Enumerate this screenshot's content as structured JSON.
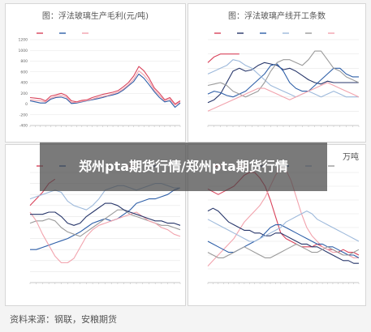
{
  "overlay_title": "郑州pta期货行情/郑州pta期货行情",
  "source": "资料来源：钢联，安粮期货",
  "colors": {
    "red": "#d9435b",
    "blue": "#2e5fa8",
    "pink": "#f2a3ad",
    "lightblue": "#9db9db",
    "gray": "#9a9a9a",
    "navy": "#27366a"
  },
  "chart_data": [
    {
      "id": "tl",
      "type": "line",
      "title": "图：浮法玻璃生产毛利(元/吨)",
      "legend": [
        "",
        "",
        ""
      ],
      "yticks": [
        "1200",
        "1000",
        "800",
        "600",
        "400",
        "200",
        "0",
        "-200",
        "-400"
      ],
      "ylim": [
        -400,
        1200
      ],
      "x": [
        0,
        1,
        2,
        3,
        4,
        5,
        6,
        7,
        8,
        9,
        10,
        11,
        12,
        13,
        14,
        15,
        16,
        17,
        18,
        19,
        20,
        21,
        22,
        23,
        24,
        25,
        26,
        27,
        28,
        29
      ],
      "series": [
        {
          "color_key": "red",
          "values": [
            120,
            110,
            100,
            60,
            150,
            170,
            200,
            160,
            60,
            40,
            70,
            80,
            120,
            150,
            180,
            200,
            220,
            250,
            320,
            400,
            520,
            700,
            620,
            480,
            300,
            200,
            80,
            120,
            0,
            60
          ]
        },
        {
          "color_key": "blue",
          "values": [
            60,
            40,
            20,
            20,
            90,
            120,
            130,
            100,
            10,
            20,
            40,
            60,
            80,
            100,
            120,
            150,
            170,
            200,
            260,
            340,
            420,
            560,
            480,
            360,
            230,
            120,
            40,
            60,
            -60,
            20
          ]
        },
        {
          "color_key": "pink",
          "values": [
            80,
            70,
            60,
            40,
            110,
            140,
            160,
            130,
            30,
            30,
            50,
            70,
            90,
            120,
            140,
            160,
            190,
            220,
            280,
            360,
            460,
            620,
            540,
            420,
            260,
            160,
            60,
            90,
            -20,
            40
          ]
        }
      ]
    },
    {
      "id": "tr",
      "type": "line",
      "title": "图：浮法玻璃产线开工条数",
      "legend": [
        "",
        "",
        "",
        "",
        "",
        ""
      ],
      "yticks": [
        "",
        "",
        "",
        "",
        "",
        "",
        ""
      ],
      "ylim": [
        0,
        6
      ],
      "x": [
        0,
        1,
        2,
        3,
        4,
        5,
        6,
        7,
        8,
        9,
        10,
        11,
        12,
        13,
        14,
        15,
        16,
        17,
        18,
        19,
        20,
        21,
        22,
        23,
        24
      ],
      "series": [
        {
          "color_key": "red",
          "values": [
            4.4,
            4.8,
            5.0,
            5.0,
            5.0,
            5.0,
            null,
            null,
            null,
            null,
            null,
            null,
            null,
            null,
            null,
            null,
            null,
            null,
            null,
            null,
            null,
            null,
            null,
            null,
            null
          ]
        },
        {
          "color_key": "navy",
          "values": [
            1.6,
            1.8,
            2.2,
            3.0,
            3.8,
            4.0,
            3.8,
            3.9,
            4.2,
            4.4,
            4.3,
            4.2,
            3.9,
            4.0,
            3.8,
            3.5,
            3.2,
            3.0,
            2.9,
            3.1,
            3.0,
            3.0,
            3.0,
            3.0,
            3.0
          ]
        },
        {
          "color_key": "blue",
          "values": [
            2.2,
            2.4,
            2.3,
            2.1,
            2.0,
            2.2,
            2.4,
            2.8,
            3.2,
            3.6,
            4.2,
            4.3,
            3.8,
            3.0,
            2.6,
            2.4,
            2.4,
            2.8,
            3.2,
            3.6,
            4.0,
            4.0,
            3.6,
            3.4,
            3.4
          ]
        },
        {
          "color_key": "lightblue",
          "values": [
            3.6,
            3.8,
            4.0,
            4.2,
            4.6,
            4.5,
            4.2,
            4.0,
            3.6,
            3.2,
            2.8,
            2.6,
            2.4,
            2.2,
            2.0,
            2.2,
            2.4,
            2.2,
            2.0,
            2.2,
            2.4,
            2.2,
            2.0,
            2.0,
            2.0
          ]
        },
        {
          "color_key": "gray",
          "values": [
            2.8,
            2.9,
            3.0,
            2.8,
            2.4,
            2.2,
            2.0,
            2.2,
            2.4,
            3.0,
            3.8,
            4.4,
            4.6,
            4.6,
            4.4,
            4.2,
            4.6,
            5.2,
            5.2,
            4.6,
            4.0,
            3.8,
            3.4,
            3.2,
            3.0
          ]
        },
        {
          "color_key": "pink",
          "values": [
            1.0,
            1.2,
            1.4,
            1.6,
            1.8,
            2.0,
            2.2,
            2.4,
            2.6,
            2.6,
            2.4,
            2.2,
            2.0,
            1.8,
            2.0,
            2.2,
            2.4,
            2.6,
            2.8,
            3.0,
            2.8,
            2.6,
            2.4,
            2.2,
            2.0
          ]
        }
      ]
    },
    {
      "id": "bl",
      "type": "line",
      "title": "",
      "legend": [
        "",
        "",
        "",
        "",
        "",
        ""
      ],
      "yticks": [
        "",
        "",
        "",
        "",
        "",
        "",
        "",
        "",
        "",
        "",
        ""
      ],
      "ylim": [
        0,
        10
      ],
      "x": [
        0,
        1,
        2,
        3,
        4,
        5,
        6,
        7,
        8,
        9,
        10,
        11,
        12,
        13,
        14,
        15,
        16,
        17,
        18,
        19,
        20,
        21,
        22,
        23,
        24
      ],
      "series": [
        {
          "color_key": "red",
          "values": [
            7.0,
            7.6,
            8.2,
            9.0,
            9.4,
            null,
            null,
            null,
            null,
            null,
            null,
            null,
            null,
            null,
            null,
            null,
            null,
            null,
            null,
            null,
            null,
            null,
            null,
            null,
            null
          ]
        },
        {
          "color_key": "blue",
          "values": [
            3.0,
            3.0,
            3.2,
            3.4,
            3.6,
            3.8,
            4.0,
            4.3,
            4.6,
            5.0,
            5.4,
            5.6,
            5.8,
            5.6,
            5.8,
            6.2,
            6.6,
            7.2,
            7.4,
            7.6,
            7.6,
            7.8,
            8.0,
            8.4,
            8.6
          ]
        },
        {
          "color_key": "lightblue",
          "values": [
            7.6,
            7.8,
            8.0,
            8.2,
            8.4,
            8.2,
            7.4,
            7.0,
            6.8,
            6.6,
            7.0,
            7.6,
            8.4,
            8.6,
            8.8,
            8.8,
            8.6,
            8.4,
            8.6,
            8.8,
            9.0,
            9.0,
            8.8,
            8.6,
            8.6
          ]
        },
        {
          "color_key": "gray",
          "values": [
            5.4,
            5.6,
            5.6,
            5.8,
            5.6,
            5.0,
            4.6,
            4.4,
            4.2,
            4.6,
            5.0,
            5.4,
            5.8,
            6.2,
            6.6,
            6.6,
            6.2,
            6.0,
            5.8,
            5.6,
            5.4,
            5.2,
            5.2,
            5.0,
            4.8
          ]
        },
        {
          "color_key": "pink",
          "values": [
            6.4,
            5.6,
            4.4,
            3.4,
            2.4,
            1.8,
            1.8,
            2.2,
            3.2,
            4.2,
            4.8,
            5.2,
            5.4,
            5.6,
            5.8,
            6.0,
            6.2,
            6.4,
            6.0,
            5.6,
            5.4,
            5.0,
            4.8,
            4.4,
            4.2
          ]
        },
        {
          "color_key": "navy",
          "values": [
            6.2,
            6.2,
            6.2,
            6.4,
            6.4,
            6.0,
            5.4,
            5.2,
            5.4,
            6.0,
            6.4,
            6.8,
            7.2,
            7.2,
            7.0,
            6.6,
            6.4,
            6.2,
            6.0,
            5.8,
            5.6,
            5.6,
            5.4,
            5.4,
            5.2
          ]
        }
      ]
    },
    {
      "id": "br",
      "type": "line",
      "title": "万吨",
      "legend": [
        "",
        "",
        "",
        "",
        "",
        ""
      ],
      "yticks": [
        "",
        "",
        "",
        "",
        "",
        "",
        "",
        "",
        ""
      ],
      "ylim": [
        0,
        8
      ],
      "x": [
        0,
        1,
        2,
        3,
        4,
        5,
        6,
        7,
        8,
        9,
        10,
        11,
        12,
        13,
        14,
        15,
        16,
        17,
        18,
        19,
        20,
        21,
        22,
        23,
        24,
        25,
        26,
        27,
        28,
        29
      ],
      "series": [
        {
          "color_key": "red",
          "values": [
            6.8,
            6.6,
            6.4,
            6.6,
            6.8,
            7.0,
            7.4,
            7.8,
            8.0,
            8.0,
            7.6,
            7.0,
            6.0,
            4.8,
            3.6,
            3.2,
            3.0,
            2.8,
            2.6,
            2.6,
            2.6,
            2.8,
            2.6,
            2.4,
            2.4,
            2.2,
            2.4,
            2.2,
            2.2,
            2.0
          ]
        },
        {
          "color_key": "pink",
          "values": [
            1.2,
            1.6,
            2.0,
            2.4,
            2.8,
            3.2,
            3.8,
            4.4,
            4.8,
            5.2,
            5.6,
            6.2,
            7.0,
            7.8,
            8.4,
            8.2,
            7.4,
            6.2,
            5.0,
            4.0,
            3.4,
            3.0,
            2.6,
            2.4,
            2.2,
            2.2,
            2.0,
            2.0,
            1.8,
            1.8
          ]
        },
        {
          "color_key": "navy",
          "values": [
            5.2,
            5.4,
            5.2,
            4.8,
            4.4,
            4.2,
            4.0,
            3.8,
            3.8,
            3.6,
            3.6,
            3.4,
            3.4,
            3.6,
            3.6,
            3.4,
            3.2,
            3.0,
            2.8,
            2.8,
            2.6,
            2.6,
            2.4,
            2.2,
            2.0,
            1.8,
            1.6,
            1.6,
            1.4,
            1.4
          ]
        },
        {
          "color_key": "blue",
          "values": [
            3.0,
            2.8,
            2.6,
            2.4,
            2.2,
            2.2,
            2.4,
            2.6,
            2.8,
            3.0,
            3.2,
            3.6,
            4.0,
            4.2,
            4.2,
            4.0,
            3.8,
            3.6,
            3.4,
            3.2,
            3.0,
            2.8,
            2.8,
            2.6,
            2.6,
            2.4,
            2.2,
            2.0,
            2.0,
            1.8
          ]
        },
        {
          "color_key": "lightblue",
          "values": [
            4.6,
            4.4,
            4.2,
            4.0,
            3.8,
            3.6,
            3.4,
            3.2,
            3.0,
            3.0,
            3.2,
            3.4,
            3.6,
            3.8,
            4.0,
            4.4,
            4.6,
            4.8,
            5.0,
            5.2,
            5.0,
            4.6,
            4.4,
            4.2,
            4.0,
            3.8,
            3.6,
            3.4,
            3.2,
            3.0
          ]
        },
        {
          "color_key": "gray",
          "values": [
            2.2,
            2.0,
            1.8,
            1.8,
            2.0,
            2.2,
            2.4,
            2.6,
            2.4,
            2.2,
            2.0,
            1.8,
            1.8,
            2.0,
            2.2,
            2.4,
            2.6,
            2.8,
            2.6,
            2.4,
            2.2,
            2.2,
            2.4,
            2.6,
            2.4,
            2.2,
            2.0,
            2.0,
            2.2,
            2.4
          ]
        }
      ]
    }
  ]
}
